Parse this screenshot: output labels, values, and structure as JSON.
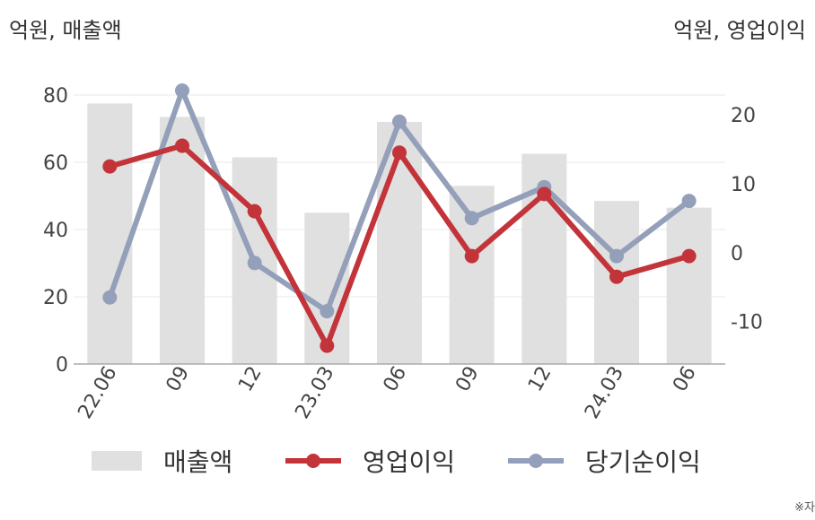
{
  "unit_left": "억원, 매출액",
  "unit_right": "억원, 영업이익",
  "footnote": "※자",
  "chart_data": {
    "type": "bar-line",
    "categories": [
      "22.06",
      "09",
      "12",
      "23.03",
      "06",
      "09",
      "12",
      "24.03",
      "06"
    ],
    "title": "",
    "xlabel": "",
    "ylabel": "",
    "y_left": {
      "min": 0,
      "max": 80,
      "ticks": [
        0,
        20,
        40,
        60,
        80
      ]
    },
    "y_right": {
      "min": -15.5,
      "max": 23.5,
      "ticks": [
        -10,
        0,
        10,
        20
      ],
      "tick_labels": [
        "-10",
        "0",
        "10",
        "20"
      ]
    },
    "grid": true,
    "legend": "bottom",
    "series": [
      {
        "name": "매출액",
        "type": "bar",
        "axis": "left",
        "color": "#e0e0e0",
        "values": [
          77.5,
          73.5,
          61.5,
          45,
          72,
          53,
          62.5,
          48.5,
          46.5
        ]
      },
      {
        "name": "영업이익",
        "type": "line",
        "axis": "right",
        "color": "#c3343a",
        "values": [
          12.5,
          15.5,
          6,
          -13.5,
          14.5,
          -0.5,
          8.5,
          -3.5,
          -0.5
        ]
      },
      {
        "name": "당기순이익",
        "type": "line",
        "axis": "right",
        "color": "#94a0ba",
        "values": [
          -6.5,
          23.5,
          -1.5,
          -8.5,
          19,
          5,
          9.5,
          -0.5,
          7.5
        ]
      }
    ]
  }
}
